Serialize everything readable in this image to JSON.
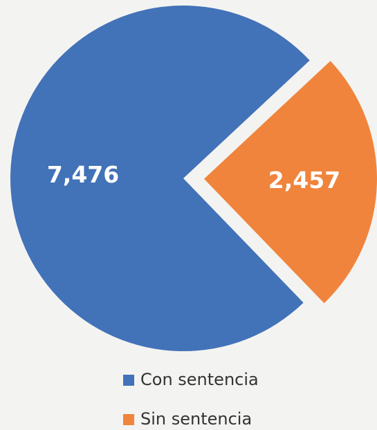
{
  "chart_data": {
    "type": "pie",
    "categories": [
      "Con sentencia",
      "Sin sentencia"
    ],
    "values": [
      7476,
      2457
    ],
    "value_labels": [
      "7,476",
      "2,457"
    ],
    "colors": [
      "#4272b8",
      "#f0843c"
    ],
    "legend": "bottom"
  }
}
